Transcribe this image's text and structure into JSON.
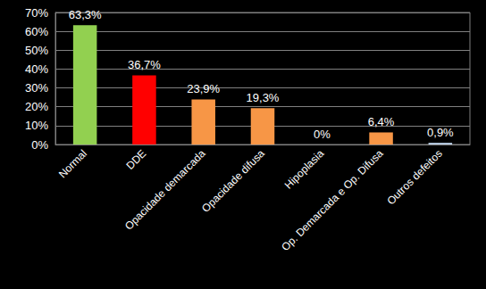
{
  "chart_data": {
    "type": "bar",
    "categories": [
      "Normal",
      "DDE",
      "Opacidade demarcada",
      "Opacidade difusa",
      "Hipoplasia",
      "Op. Demarcada e Op. Difusa",
      "Outros defeitos"
    ],
    "values": [
      63.3,
      36.7,
      23.9,
      19.3,
      0,
      6.4,
      0.9
    ],
    "value_labels": [
      "63,3%",
      "36,7%",
      "23,9%",
      "19,3%",
      "0%",
      "6,4%",
      "0,9%"
    ],
    "colors": [
      "#92d050",
      "#ff0000",
      "#f79646",
      "#f79646",
      "#f79646",
      "#f79646",
      "#b9cde5"
    ],
    "ylim": [
      0,
      70
    ],
    "yticks": [
      {
        "value": 0,
        "label": "0%"
      },
      {
        "value": 10,
        "label": "10%"
      },
      {
        "value": 20,
        "label": "20%"
      },
      {
        "value": 30,
        "label": "30%"
      },
      {
        "value": 40,
        "label": "40%"
      },
      {
        "value": 50,
        "label": "50%"
      },
      {
        "value": 60,
        "label": "60%"
      },
      {
        "value": 70,
        "label": "70%"
      }
    ],
    "grid": true,
    "data_labels": true
  }
}
